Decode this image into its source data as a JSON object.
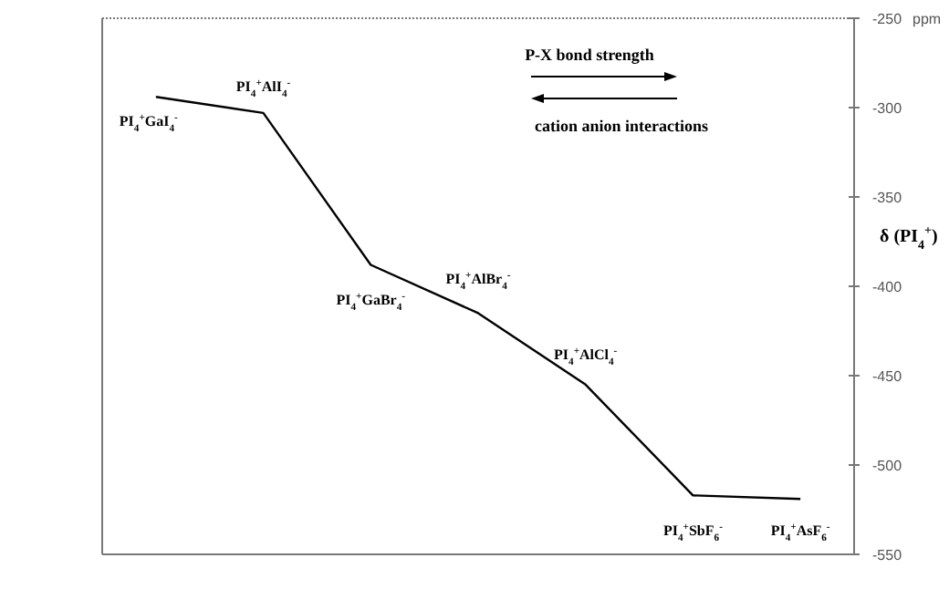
{
  "chart_data": {
    "type": "line",
    "categories": [
      "PI$_{4}$$^{+}$GaI$_{4}$$^{-}$",
      "PI$_{4}$$^{+}$AlI$_{4}$$^{-}$",
      "PI$_{4}$$^{+}$GaBr$_{4}$$^{-}$",
      "PI$_{4}$$^{+}$AlBr$_{4}$$^{-}$",
      "PI$_{4}$$^{+}$AlCl$_{4}$$^{-}$",
      "PI$_{4}$$^{+}$SbF$_{6}$$^{-}$",
      "PI$_{4}$$^{+}$AsF$_{6}$$^{-}$"
    ],
    "series": [
      {
        "color": "#000000",
        "values": [
          -294,
          -303,
          -388,
          -415,
          -455,
          -517,
          -519
        ]
      }
    ],
    "ylabel": "δ (PI$_{4}$$^{+}$)",
    "ylim": [
      -550,
      -250
    ],
    "yticks": [
      -550,
      -500,
      -450,
      -400,
      -350,
      -300,
      -250
    ],
    "annotations": [
      "ppm",
      "P-X bond strength",
      "cation anion interactions"
    ],
    "marker": "none"
  }
}
